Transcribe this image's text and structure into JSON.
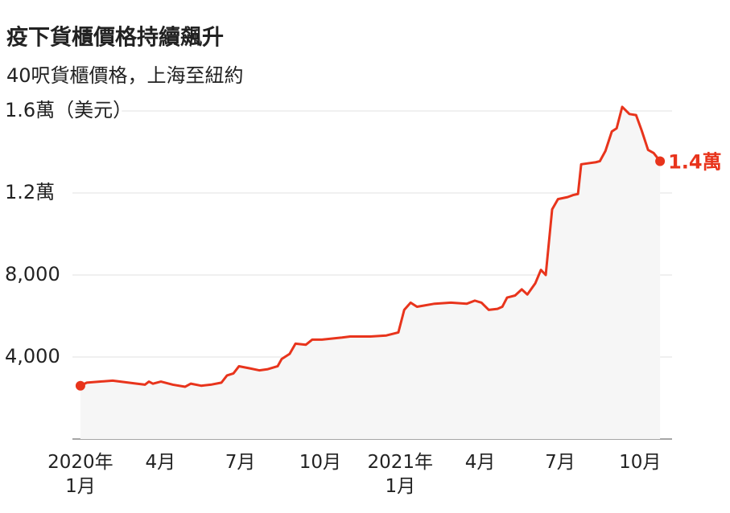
{
  "chart_data": {
    "type": "line",
    "title": "疫下貨櫃價格持續飆升",
    "subtitle": "40呎貨櫃價格，上海至紐約",
    "end_label": "1.4萬",
    "x": [
      0,
      0.24,
      1.21,
      2.11,
      2.42,
      2.57,
      2.72,
      3.02,
      3.47,
      3.93,
      4.14,
      4.53,
      4.89,
      5.29,
      5.5,
      5.74,
      5.95,
      6.34,
      6.71,
      7.01,
      7.4,
      7.55,
      7.85,
      8.07,
      8.46,
      8.7,
      9.06,
      9.82,
      10.12,
      10.88,
      11.48,
      11.93,
      12.15,
      12.39,
      12.63,
      13.29,
      13.9,
      14.5,
      14.8,
      15.05,
      15.32,
      15.65,
      15.83,
      16.01,
      16.31,
      16.56,
      16.77,
      17.07,
      17.28,
      17.46,
      17.7,
      17.92,
      18.28,
      18.49,
      18.67,
      18.79,
      19.34,
      19.49,
      19.7,
      19.94,
      20.12,
      20.33,
      20.6,
      20.85,
      21.06,
      21.3,
      21.51,
      21.75
    ],
    "series": [
      {
        "name": "40呎貨櫃價格",
        "color": "#e8341c",
        "values": [
          2600,
          2750,
          2850,
          2700,
          2650,
          2800,
          2700,
          2800,
          2650,
          2550,
          2700,
          2600,
          2650,
          2750,
          3100,
          3200,
          3550,
          3450,
          3350,
          3400,
          3550,
          3900,
          4150,
          4650,
          4600,
          4850,
          4850,
          4950,
          5000,
          5000,
          5050,
          5200,
          6300,
          6650,
          6450,
          6600,
          6650,
          6600,
          6750,
          6650,
          6300,
          6350,
          6450,
          6900,
          7000,
          7300,
          7050,
          7600,
          8250,
          8000,
          11200,
          11700,
          11800,
          11900,
          11950,
          13400,
          13500,
          13550,
          14050,
          15000,
          15150,
          16200,
          15850,
          15800,
          15050,
          14100,
          13950,
          13550
        ]
      }
    ],
    "xlim": [
      -0.3,
      22.2
    ],
    "xticks": [
      {
        "value": 0,
        "label": "2020年\n1月"
      },
      {
        "value": 3,
        "label": "4月"
      },
      {
        "value": 6,
        "label": "7月"
      },
      {
        "value": 9,
        "label": "10月"
      },
      {
        "value": 12,
        "label": "2021年\n1月"
      },
      {
        "value": 15,
        "label": "4月"
      },
      {
        "value": 18,
        "label": "7月"
      },
      {
        "value": 21,
        "label": "10月"
      }
    ],
    "ylim": [
      0,
      16000
    ],
    "yticks": [
      {
        "value": 4000,
        "label": "4,000"
      },
      {
        "value": 8000,
        "label": "8,000"
      },
      {
        "value": 12000,
        "label": "1.2萬"
      },
      {
        "value": 16000,
        "label": "1.6萬（美元）"
      }
    ],
    "grid": true
  }
}
